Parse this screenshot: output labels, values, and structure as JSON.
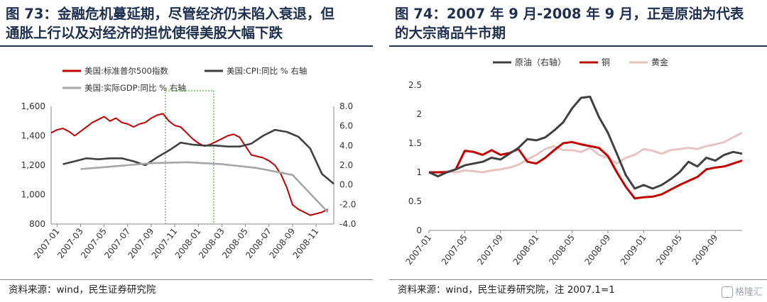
{
  "left": {
    "title_line1": "图 73：金融危机蔓延期，尽管经济仍未陷入衰退，但",
    "title_line2": "通胀上行以及对经济的担忧使得美股大幅下跌",
    "source": "资料来源：wind，民生证券研究院",
    "legend": [
      "美国:标准普尔500指数",
      "美国:CPI:同比 % 右轴",
      "美国:实际GDP:同比 % 右轴"
    ],
    "colors": {
      "spx": "#c00000",
      "cpi": "#404040",
      "gdp": "#a6a6a6",
      "box": "#5aaa3c"
    }
  },
  "right": {
    "title_line1": "图 74：2007 年 9 月-2008 年 9 月，正是原油为代表",
    "title_line2": "的大宗商品牛市期",
    "source": "资料来源：wind，民生证券研究院，注 2007.1=1",
    "legend": [
      "原油（右轴）",
      "铜",
      "黄金"
    ],
    "colors": {
      "oil": "#404040",
      "copper": "#c00000",
      "gold": "#e6c4c4"
    }
  },
  "watermark": "格隆汇",
  "chart_data": [
    {
      "type": "line",
      "x_ticks": [
        "2007-01",
        "2007-03",
        "2007-05",
        "2007-07",
        "2007-09",
        "2007-11",
        "2008-01",
        "2008-03",
        "2008-05",
        "2008-07",
        "2008-09",
        "2008-11"
      ],
      "y_left_ticks": [
        "1,600",
        "1,400",
        "1,200",
        "1,000",
        "800"
      ],
      "y_left_range": [
        800,
        1600
      ],
      "y_right_ticks": [
        "8.0",
        "6.0",
        "4.0",
        "2.0",
        "0.0",
        "-2.0",
        "-4.0"
      ],
      "y_right_range": [
        -4,
        8
      ],
      "highlight": {
        "from": "2007-10",
        "to": "2008-02"
      },
      "series": [
        {
          "name": "美国:标准普尔500指数",
          "axis": "left",
          "x": [
            0,
            0.5,
            1,
            1.5,
            2,
            2.5,
            3,
            3.5,
            4,
            4.5,
            5,
            5.5,
            6,
            6.5,
            7,
            7.5,
            8,
            8.5,
            9,
            9.5,
            10,
            10.5,
            11,
            11.5,
            12,
            12.5,
            13,
            13.5,
            14,
            14.5,
            15,
            15.5,
            16,
            16.5,
            17,
            17.5,
            18,
            18.5,
            19,
            19.5,
            20,
            20.5,
            21,
            21.5,
            22,
            22.5,
            23,
            23.5
          ],
          "values": [
            1420,
            1440,
            1450,
            1430,
            1400,
            1430,
            1460,
            1490,
            1510,
            1530,
            1500,
            1520,
            1490,
            1480,
            1460,
            1480,
            1490,
            1520,
            1540,
            1550,
            1500,
            1470,
            1460,
            1420,
            1380,
            1350,
            1330,
            1340,
            1360,
            1380,
            1400,
            1410,
            1390,
            1330,
            1270,
            1260,
            1250,
            1230,
            1200,
            1140,
            1050,
            930,
            900,
            880,
            860,
            870,
            880,
            900
          ]
        },
        {
          "name": "美国:CPI:同比 % 右轴",
          "axis": "right",
          "x": [
            1,
            2,
            3,
            4,
            5,
            6,
            7,
            8,
            9,
            10,
            11,
            12,
            13,
            14,
            15,
            16,
            17,
            18,
            19,
            20,
            21,
            22,
            23,
            24
          ],
          "values": [
            2.1,
            2.4,
            2.7,
            2.6,
            2.7,
            2.7,
            2.4,
            2.0,
            2.8,
            3.5,
            4.3,
            4.1,
            4.0,
            4.0,
            3.9,
            3.9,
            4.2,
            5.0,
            5.6,
            5.4,
            4.9,
            3.7,
            1.1,
            0.1
          ]
        },
        {
          "name": "美国:实际GDP:同比 % 右轴",
          "axis": "right",
          "x": [
            2.5,
            5.5,
            8.5,
            11.5,
            14.5,
            17.5,
            20.5,
            23.5
          ],
          "values": [
            1.6,
            1.9,
            2.2,
            2.3,
            2.1,
            1.7,
            1.0,
            -2.8
          ]
        }
      ]
    },
    {
      "type": "line",
      "x_ticks": [
        "2007-01",
        "2007-05",
        "2007-09",
        "2008-01",
        "2008-05",
        "2008-09",
        "2009-01",
        "2009-05",
        "2009-09"
      ],
      "y_ticks": [
        "2.5",
        "2",
        "1.5",
        "1",
        "0.5",
        "0"
      ],
      "y_range": [
        0,
        2.5
      ],
      "series": [
        {
          "name": "原油（右轴）",
          "x": [
            0,
            1,
            2,
            3,
            4,
            5,
            6,
            7,
            8,
            9,
            10,
            11,
            12,
            13,
            14,
            15,
            16,
            17,
            18,
            19,
            20,
            21,
            22,
            23,
            24,
            25,
            26,
            27,
            28,
            29,
            30,
            31,
            32,
            33,
            34,
            35
          ],
          "values": [
            1.0,
            0.93,
            1.0,
            1.05,
            1.12,
            1.15,
            1.18,
            1.25,
            1.22,
            1.32,
            1.42,
            1.57,
            1.55,
            1.6,
            1.72,
            1.86,
            2.1,
            2.28,
            2.3,
            1.95,
            1.68,
            1.32,
            0.95,
            0.72,
            0.78,
            0.72,
            0.78,
            0.88,
            1.0,
            1.18,
            1.1,
            1.25,
            1.2,
            1.3,
            1.35,
            1.32
          ]
        },
        {
          "name": "铜",
          "x": [
            0,
            1,
            2,
            3,
            4,
            5,
            6,
            7,
            8,
            9,
            10,
            11,
            12,
            13,
            14,
            15,
            16,
            17,
            18,
            19,
            20,
            21,
            22,
            23,
            24,
            25,
            26,
            27,
            28,
            29,
            30,
            31,
            32,
            33,
            34,
            35
          ],
          "values": [
            1.0,
            1.0,
            1.0,
            1.05,
            1.37,
            1.35,
            1.3,
            1.38,
            1.3,
            1.33,
            1.4,
            1.18,
            1.15,
            1.25,
            1.38,
            1.5,
            1.52,
            1.48,
            1.45,
            1.42,
            1.28,
            1.0,
            0.75,
            0.55,
            0.57,
            0.58,
            0.62,
            0.7,
            0.78,
            0.85,
            0.92,
            1.05,
            1.08,
            1.1,
            1.15,
            1.2
          ]
        },
        {
          "name": "黄金",
          "x": [
            0,
            1,
            2,
            3,
            4,
            5,
            6,
            7,
            8,
            9,
            10,
            11,
            12,
            13,
            14,
            15,
            16,
            17,
            18,
            19,
            20,
            21,
            22,
            23,
            24,
            25,
            26,
            27,
            28,
            29,
            30,
            31,
            32,
            33,
            34,
            35
          ],
          "values": [
            1.0,
            1.0,
            1.02,
            1.0,
            1.03,
            1.02,
            1.0,
            1.03,
            1.05,
            1.08,
            1.13,
            1.22,
            1.3,
            1.4,
            1.45,
            1.38,
            1.38,
            1.35,
            1.42,
            1.3,
            1.25,
            1.15,
            1.25,
            1.3,
            1.4,
            1.37,
            1.32,
            1.38,
            1.4,
            1.42,
            1.4,
            1.45,
            1.48,
            1.52,
            1.6,
            1.68
          ]
        }
      ]
    }
  ]
}
